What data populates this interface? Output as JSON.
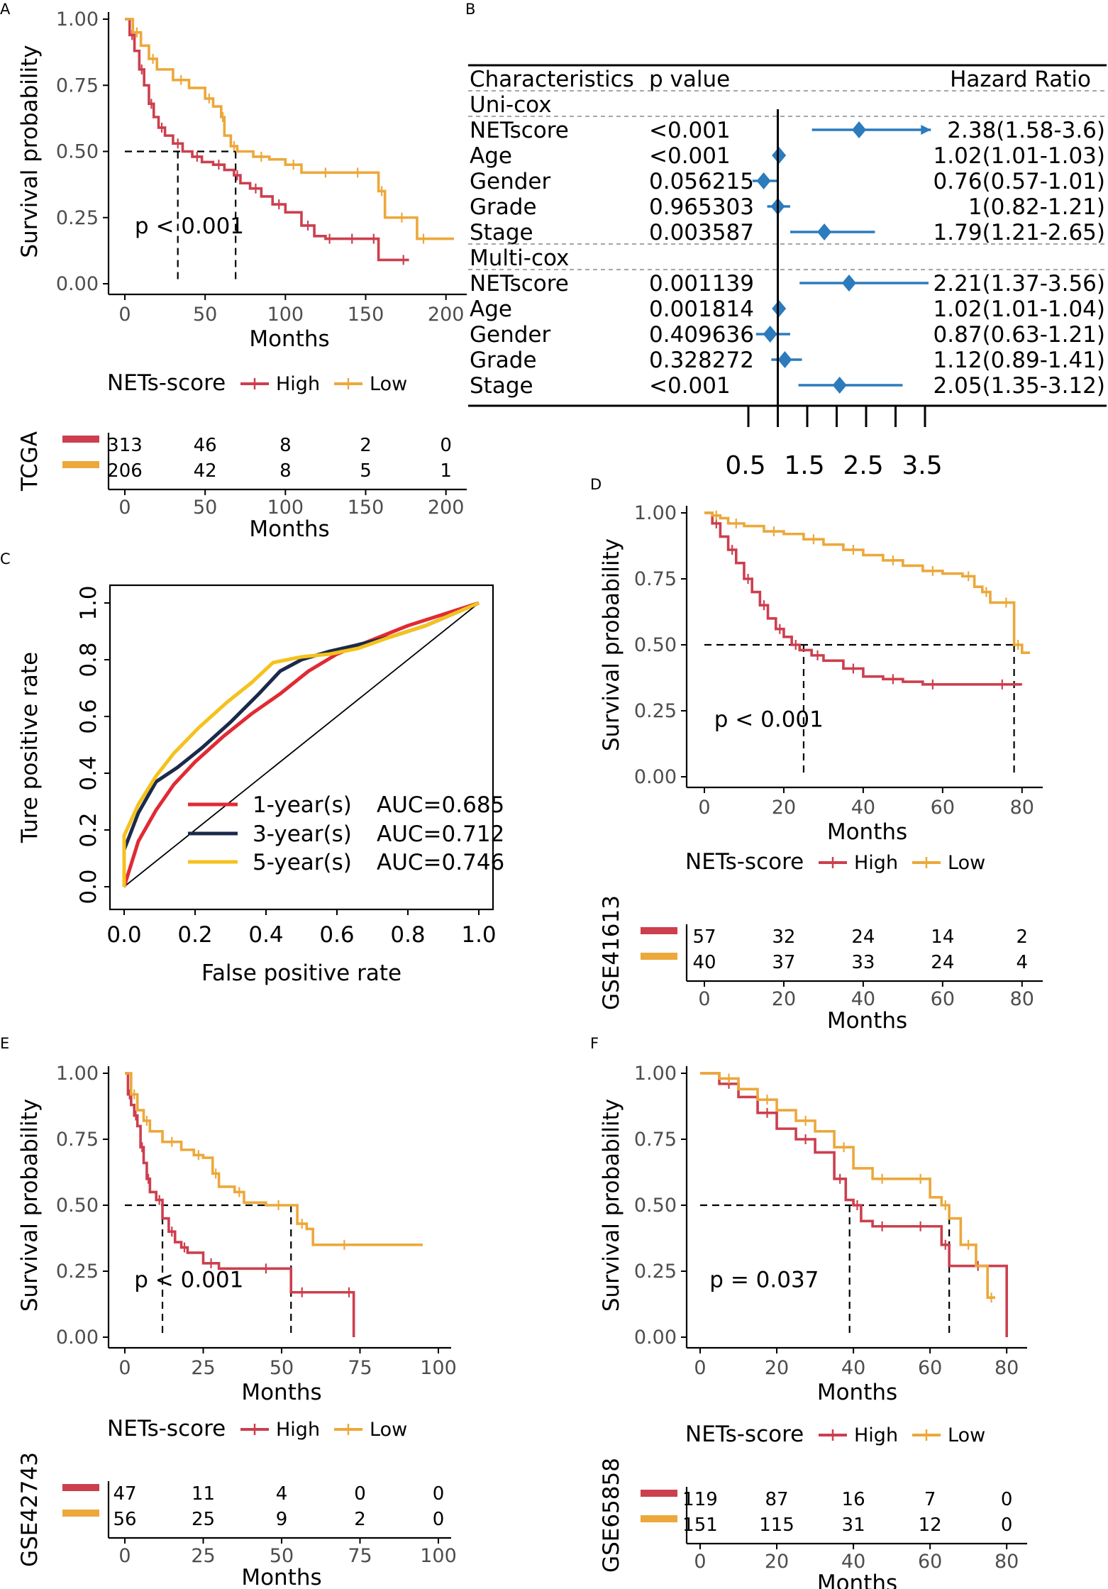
{
  "colors": {
    "high": "#cc3f4e",
    "low": "#eca83a",
    "forest": "#2b7bbd",
    "auc1": "#e12a34",
    "auc3": "#1b2a4a",
    "auc5": "#f5c21c",
    "grid": "#000000"
  },
  "panel_letters": [
    "A",
    "B",
    "C",
    "D",
    "E",
    "F"
  ],
  "chart_data": [
    {
      "panel": "A",
      "type": "line",
      "subtype": "kaplan-meier",
      "ylabel": "Survival probability",
      "xlabel": "Months",
      "xlim": [
        0,
        205
      ],
      "ylim": [
        0,
        1
      ],
      "xticks": [
        "0",
        "50",
        "100",
        "150",
        "200"
      ],
      "xtick_values": [
        0,
        50,
        100,
        150,
        200
      ],
      "yticks": [
        "0.00",
        "0.25",
        "0.50",
        "0.75",
        "1.00"
      ],
      "ytick_values": [
        0,
        0.25,
        0.5,
        0.75,
        1
      ],
      "pvalue": "p < 0.001",
      "median_lines": [
        33,
        69
      ],
      "legend": {
        "title": "NETs-score",
        "items": [
          "High",
          "Low"
        ]
      },
      "series": [
        {
          "name": "High",
          "x": [
            0,
            3,
            6,
            9,
            12,
            15,
            18,
            21,
            25,
            30,
            36,
            42,
            48,
            55,
            62,
            68,
            72,
            78,
            85,
            92,
            100,
            110,
            118,
            125,
            130,
            138,
            145,
            152,
            158,
            170,
            177
          ],
          "y": [
            1.0,
            0.94,
            0.88,
            0.81,
            0.75,
            0.68,
            0.63,
            0.59,
            0.56,
            0.53,
            0.5,
            0.48,
            0.46,
            0.45,
            0.43,
            0.41,
            0.38,
            0.36,
            0.33,
            0.3,
            0.27,
            0.22,
            0.18,
            0.17,
            0.17,
            0.17,
            0.17,
            0.17,
            0.09,
            0.09,
            0.09
          ]
        },
        {
          "name": "Low",
          "x": [
            0,
            5,
            10,
            15,
            20,
            30,
            40,
            50,
            55,
            60,
            62,
            66,
            70,
            80,
            90,
            100,
            110,
            120,
            130,
            140,
            150,
            158,
            162,
            170,
            175,
            182,
            190,
            205
          ],
          "y": [
            1.0,
            0.95,
            0.9,
            0.85,
            0.81,
            0.77,
            0.74,
            0.7,
            0.67,
            0.63,
            0.56,
            0.52,
            0.5,
            0.48,
            0.47,
            0.45,
            0.42,
            0.42,
            0.42,
            0.42,
            0.42,
            0.35,
            0.25,
            0.25,
            0.25,
            0.17,
            0.17,
            0.17
          ]
        }
      ],
      "risk_table": {
        "dataset": "TCGA",
        "times": [
          0,
          50,
          100,
          150,
          200
        ],
        "time_labels": [
          "0",
          "50",
          "100",
          "150",
          "200"
        ],
        "rows": [
          [
            "313",
            "46",
            "8",
            "2",
            "0"
          ],
          [
            "206",
            "42",
            "8",
            "5",
            "1"
          ]
        ],
        "xlabel": "Months"
      }
    },
    {
      "panel": "B",
      "type": "forest",
      "headers": [
        "Characteristics",
        "p value",
        "Hazard Ratio"
      ],
      "xticks": [
        "0.5",
        "1.5",
        "2.5",
        "3.5"
      ],
      "xtick_values": [
        0.5,
        1.5,
        2.5,
        3.5
      ],
      "minor_xtick_values": [
        0.5,
        1,
        1.5,
        2,
        2.5,
        3,
        3.5
      ],
      "reference": 1,
      "xlim": [
        0.35,
        3.6
      ],
      "sections": [
        {
          "label": "Uni-cox",
          "rows": [
            {
              "name": "NETscore",
              "p": "<0.001",
              "hr_text": "2.38(1.58-3.6)",
              "hr": 2.38,
              "lo": 1.58,
              "hi": 3.6
            },
            {
              "name": "Age",
              "p": "<0.001",
              "hr_text": "1.02(1.01-1.03)",
              "hr": 1.02,
              "lo": 1.01,
              "hi": 1.03
            },
            {
              "name": "Gender",
              "p": "0.056215",
              "hr_text": "0.76(0.57-1.01)",
              "hr": 0.76,
              "lo": 0.57,
              "hi": 1.01
            },
            {
              "name": "Grade",
              "p": "0.965303",
              "hr_text": "1(0.82-1.21)",
              "hr": 1.0,
              "lo": 0.82,
              "hi": 1.21
            },
            {
              "name": "Stage",
              "p": "0.003587",
              "hr_text": "1.79(1.21-2.65)",
              "hr": 1.79,
              "lo": 1.21,
              "hi": 2.65
            }
          ]
        },
        {
          "label": "Multi-cox",
          "rows": [
            {
              "name": "NETscore",
              "p": "0.001139",
              "hr_text": "2.21(1.37-3.56)",
              "hr": 2.21,
              "lo": 1.37,
              "hi": 3.56
            },
            {
              "name": "Age",
              "p": "0.001814",
              "hr_text": "1.02(1.01-1.04)",
              "hr": 1.02,
              "lo": 1.01,
              "hi": 1.04
            },
            {
              "name": "Gender",
              "p": "0.409636",
              "hr_text": "0.87(0.63-1.21)",
              "hr": 0.87,
              "lo": 0.63,
              "hi": 1.21
            },
            {
              "name": "Grade",
              "p": "0.328272",
              "hr_text": "1.12(0.89-1.41)",
              "hr": 1.12,
              "lo": 0.89,
              "hi": 1.41
            },
            {
              "name": "Stage",
              "p": "<0.001",
              "hr_text": "2.05(1.35-3.12)",
              "hr": 2.05,
              "lo": 1.35,
              "hi": 3.12
            }
          ]
        }
      ]
    },
    {
      "panel": "C",
      "type": "line",
      "subtype": "roc",
      "xlabel": "False positive rate",
      "ylabel": "Ture positive rate",
      "xlim": [
        0,
        1
      ],
      "ylim": [
        0,
        1
      ],
      "xticks": [
        "0.0",
        "0.2",
        "0.4",
        "0.6",
        "0.8",
        "1.0"
      ],
      "xtick_values": [
        0,
        0.2,
        0.4,
        0.6,
        0.8,
        1
      ],
      "yticks": [
        "0.0",
        "0.2",
        "0.4",
        "0.6",
        "0.8",
        "1.0"
      ],
      "ytick_values": [
        0,
        0.2,
        0.4,
        0.6,
        0.8,
        1
      ],
      "legend": {
        "items": [
          "1-year(s)",
          "3-year(s)",
          "5-year(s)"
        ],
        "auc": [
          "AUC=0.685",
          "AUC=0.712",
          "AUC=0.746"
        ]
      },
      "series": [
        {
          "name": "1-year(s)",
          "x": [
            0,
            0.04,
            0.09,
            0.14,
            0.2,
            0.28,
            0.36,
            0.44,
            0.52,
            0.6,
            0.7,
            0.8,
            0.9,
            1.0
          ],
          "y": [
            0,
            0.16,
            0.27,
            0.36,
            0.44,
            0.53,
            0.61,
            0.68,
            0.76,
            0.82,
            0.87,
            0.92,
            0.96,
            1.0
          ]
        },
        {
          "name": "3-year(s)",
          "x": [
            0,
            0.0,
            0.04,
            0.09,
            0.15,
            0.22,
            0.3,
            0.38,
            0.44,
            0.5,
            0.58,
            0.65,
            0.75,
            0.85,
            1.0
          ],
          "y": [
            0,
            0.13,
            0.26,
            0.37,
            0.42,
            0.49,
            0.58,
            0.68,
            0.76,
            0.8,
            0.83,
            0.85,
            0.88,
            0.92,
            1.0
          ]
        },
        {
          "name": "5-year(s)",
          "x": [
            0,
            0.0,
            0.04,
            0.09,
            0.14,
            0.21,
            0.29,
            0.36,
            0.42,
            0.5,
            0.58,
            0.66,
            0.75,
            0.85,
            1.0
          ],
          "y": [
            0,
            0.18,
            0.29,
            0.39,
            0.47,
            0.56,
            0.65,
            0.72,
            0.79,
            0.81,
            0.82,
            0.84,
            0.88,
            0.92,
            1.0
          ]
        }
      ]
    },
    {
      "panel": "D",
      "type": "line",
      "subtype": "kaplan-meier",
      "ylabel": "Survival probability",
      "xlabel": "Months",
      "xlim": [
        0,
        82
      ],
      "ylim": [
        0,
        1
      ],
      "xticks": [
        "0",
        "20",
        "40",
        "60",
        "80"
      ],
      "xtick_values": [
        0,
        20,
        40,
        60,
        80
      ],
      "yticks": [
        "0.00",
        "0.25",
        "0.50",
        "0.75",
        "1.00"
      ],
      "ytick_values": [
        0,
        0.25,
        0.5,
        0.75,
        1
      ],
      "pvalue": "p < 0.001",
      "median_lines": [
        25,
        78
      ],
      "legend": {
        "title": "NETs-score",
        "items": [
          "High",
          "Low"
        ]
      },
      "series": [
        {
          "name": "High",
          "x": [
            0,
            2,
            4,
            6,
            8,
            10,
            12,
            14,
            16,
            18,
            20,
            22,
            24,
            27,
            30,
            35,
            40,
            45,
            50,
            55,
            60,
            70,
            80
          ],
          "y": [
            1.0,
            0.96,
            0.91,
            0.86,
            0.81,
            0.75,
            0.7,
            0.65,
            0.6,
            0.56,
            0.53,
            0.5,
            0.48,
            0.46,
            0.44,
            0.41,
            0.38,
            0.37,
            0.36,
            0.35,
            0.35,
            0.35,
            0.35
          ]
        },
        {
          "name": "Low",
          "x": [
            0,
            2,
            4,
            6,
            10,
            15,
            20,
            25,
            30,
            35,
            40,
            45,
            50,
            55,
            60,
            65,
            68,
            70,
            72,
            75,
            77,
            78,
            80,
            82
          ],
          "y": [
            1.0,
            0.99,
            0.98,
            0.96,
            0.95,
            0.93,
            0.92,
            0.9,
            0.88,
            0.86,
            0.84,
            0.82,
            0.8,
            0.78,
            0.77,
            0.76,
            0.72,
            0.7,
            0.66,
            0.66,
            0.66,
            0.5,
            0.47,
            0.47
          ]
        }
      ],
      "risk_table": {
        "dataset": "GSE41613",
        "times": [
          0,
          20,
          40,
          60,
          80
        ],
        "time_labels": [
          "0",
          "20",
          "40",
          "60",
          "80"
        ],
        "rows": [
          [
            "57",
            "32",
            "24",
            "14",
            "2"
          ],
          [
            "40",
            "37",
            "33",
            "24",
            "4"
          ]
        ],
        "xlabel": "Months"
      }
    },
    {
      "panel": "E",
      "type": "line",
      "subtype": "kaplan-meier",
      "ylabel": "Survival probability",
      "xlabel": "Months",
      "xlim": [
        0,
        100
      ],
      "ylim": [
        0,
        1
      ],
      "xticks": [
        "0",
        "25",
        "50",
        "75",
        "100"
      ],
      "xtick_values": [
        0,
        25,
        50,
        75,
        100
      ],
      "yticks": [
        "0.00",
        "0.25",
        "0.50",
        "0.75",
        "1.00"
      ],
      "ytick_values": [
        0,
        0.25,
        0.5,
        0.75,
        1
      ],
      "pvalue": "p < 0.001",
      "median_lines": [
        12,
        53
      ],
      "legend": {
        "title": "NETs-score",
        "items": [
          "High",
          "Low"
        ]
      },
      "series": [
        {
          "name": "High",
          "x": [
            0,
            1,
            2,
            3,
            4,
            5,
            6,
            7,
            8,
            10,
            12,
            14,
            16,
            18,
            20,
            25,
            30,
            40,
            50,
            53,
            60,
            70,
            73
          ],
          "y": [
            1.0,
            0.92,
            0.88,
            0.84,
            0.8,
            0.72,
            0.66,
            0.6,
            0.55,
            0.52,
            0.45,
            0.4,
            0.36,
            0.34,
            0.32,
            0.28,
            0.26,
            0.26,
            0.26,
            0.17,
            0.17,
            0.17,
            0.0
          ]
        },
        {
          "name": "Low",
          "x": [
            0,
            2,
            4,
            6,
            8,
            12,
            18,
            22,
            25,
            28,
            30,
            35,
            38,
            45,
            53,
            55,
            58,
            60,
            80,
            95
          ],
          "y": [
            1.0,
            0.92,
            0.86,
            0.82,
            0.78,
            0.74,
            0.71,
            0.69,
            0.68,
            0.62,
            0.57,
            0.55,
            0.51,
            0.5,
            0.5,
            0.43,
            0.41,
            0.35,
            0.35,
            0.35
          ]
        }
      ],
      "risk_table": {
        "dataset": "GSE42743",
        "times": [
          0,
          25,
          50,
          75,
          100
        ],
        "time_labels": [
          "0",
          "25",
          "50",
          "75",
          "100"
        ],
        "rows": [
          [
            "47",
            "11",
            "4",
            "0",
            "0"
          ],
          [
            "56",
            "25",
            "9",
            "2",
            "0"
          ]
        ],
        "xlabel": "Months"
      }
    },
    {
      "panel": "F",
      "type": "line",
      "subtype": "kaplan-meier",
      "ylabel": "Survival probability",
      "xlabel": "Months",
      "xlim": [
        0,
        82
      ],
      "ylim": [
        0,
        1
      ],
      "xticks": [
        "0",
        "20",
        "40",
        "60",
        "80"
      ],
      "xtick_values": [
        0,
        20,
        40,
        60,
        80
      ],
      "yticks": [
        "0.00",
        "0.25",
        "0.50",
        "0.75",
        "1.00"
      ],
      "ytick_values": [
        0,
        0.25,
        0.5,
        0.75,
        1
      ],
      "pvalue": "p = 0.037",
      "median_lines": [
        39,
        65
      ],
      "legend": {
        "title": "NETs-score",
        "items": [
          "High",
          "Low"
        ]
      },
      "series": [
        {
          "name": "High",
          "x": [
            0,
            5,
            10,
            15,
            20,
            25,
            30,
            35,
            38,
            40,
            42,
            45,
            50,
            55,
            60,
            63,
            65,
            70,
            75,
            80
          ],
          "y": [
            1.0,
            0.96,
            0.91,
            0.85,
            0.79,
            0.75,
            0.7,
            0.6,
            0.52,
            0.5,
            0.44,
            0.42,
            0.42,
            0.42,
            0.42,
            0.35,
            0.27,
            0.27,
            0.27,
            0.0
          ]
        },
        {
          "name": "Low",
          "x": [
            0,
            5,
            10,
            15,
            20,
            25,
            30,
            35,
            40,
            45,
            50,
            55,
            60,
            63,
            65,
            68,
            72,
            75,
            77
          ],
          "y": [
            1.0,
            0.98,
            0.94,
            0.9,
            0.86,
            0.82,
            0.78,
            0.72,
            0.64,
            0.6,
            0.6,
            0.6,
            0.53,
            0.5,
            0.45,
            0.35,
            0.27,
            0.15,
            0.15
          ]
        }
      ],
      "risk_table": {
        "dataset": "GSE65858",
        "times": [
          0,
          20,
          40,
          60,
          80
        ],
        "time_labels": [
          "0",
          "20",
          "40",
          "60",
          "80"
        ],
        "rows": [
          [
            "119",
            "87",
            "16",
            "7",
            "0"
          ],
          [
            "151",
            "115",
            "31",
            "12",
            "0"
          ]
        ],
        "xlabel": "Months"
      }
    }
  ]
}
